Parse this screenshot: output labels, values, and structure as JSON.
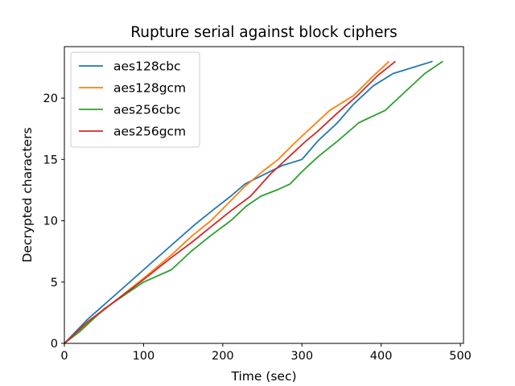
{
  "chart_data": {
    "type": "line",
    "title": "Rupture serial against block ciphers",
    "xlabel": "Time (sec)",
    "ylabel": "Decrypted characters",
    "xlim": [
      0,
      504
    ],
    "ylim": [
      0,
      24.2
    ],
    "xticks": [
      0,
      100,
      200,
      300,
      400,
      500
    ],
    "yticks": [
      0,
      5,
      10,
      15,
      20
    ],
    "grid": false,
    "legend_position": "upper-left",
    "series": [
      {
        "name": "aes128cbc",
        "color": "#1f77b4",
        "x": [
          0,
          30,
          65,
          100,
          135,
          165,
          190,
          210,
          228,
          250,
          275,
          300,
          320,
          345,
          365,
          390,
          415,
          440,
          465
        ],
        "y": [
          0,
          2,
          4,
          6,
          8,
          9.7,
          11,
          12,
          13,
          13.7,
          14.5,
          15,
          16.5,
          18,
          19.5,
          21,
          22,
          22.5,
          23
        ]
      },
      {
        "name": "aes128gcm",
        "color": "#ff7f0e",
        "x": [
          0,
          30,
          65,
          100,
          135,
          160,
          185,
          205,
          228,
          250,
          270,
          290,
          310,
          335,
          365,
          390,
          410
        ],
        "y": [
          0,
          1.7,
          3.5,
          5.3,
          7.2,
          8.7,
          10,
          11.3,
          12.8,
          14,
          15,
          16.3,
          17.5,
          19,
          20.2,
          21.8,
          23
        ]
      },
      {
        "name": "aes256cbc",
        "color": "#2ca02c",
        "x": [
          0,
          20,
          50,
          100,
          135,
          160,
          185,
          210,
          230,
          248,
          268,
          285,
          300,
          320,
          345,
          372,
          405,
          430,
          455,
          478
        ],
        "y": [
          0,
          1,
          2.8,
          5,
          6,
          7.5,
          8.8,
          10,
          11.2,
          12,
          12.5,
          13,
          14,
          15.2,
          16.5,
          18,
          19,
          20.5,
          22,
          23
        ]
      },
      {
        "name": "aes256gcm",
        "color": "#d62728",
        "x": [
          0,
          30,
          65,
          100,
          135,
          160,
          185,
          210,
          235,
          260,
          285,
          305,
          320,
          345,
          370,
          395,
          418
        ],
        "y": [
          0,
          1.8,
          3.5,
          5.2,
          7,
          8.2,
          9.5,
          10.8,
          12,
          13.8,
          15.3,
          16.5,
          17.3,
          18.8,
          20.2,
          21.8,
          23
        ]
      }
    ]
  }
}
